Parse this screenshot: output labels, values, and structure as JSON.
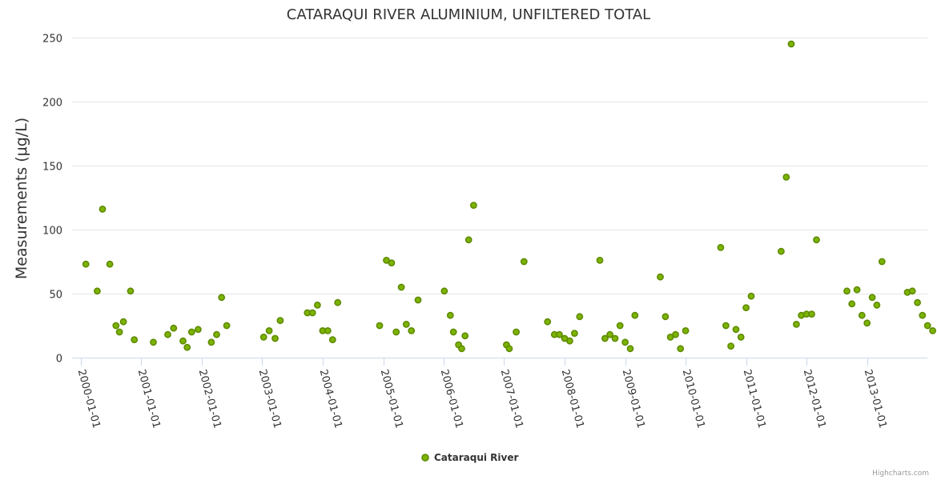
{
  "chart_data": {
    "type": "scatter",
    "title": "CATARAQUI RIVER ALUMINIUM, UNFILTERED TOTAL",
    "ylabel": "Measurements (μg/L)",
    "xlabel": "",
    "ylim": [
      0,
      250
    ],
    "yticks": [
      0,
      50,
      100,
      150,
      200,
      250
    ],
    "xticks": [
      "2000-01-01",
      "2001-01-01",
      "2002-01-01",
      "2003-01-01",
      "2004-01-01",
      "2005-01-01",
      "2006-01-01",
      "2007-01-01",
      "2008-01-01",
      "2009-01-01",
      "2010-01-01",
      "2011-01-01",
      "2012-01-01",
      "2013-01-01"
    ],
    "x_range": [
      "1999-11-10",
      "2013-12-31"
    ],
    "grid": "horizontal",
    "legend": "bottom-center",
    "series": [
      {
        "name": "Cataraqui River",
        "color": "#7cb400",
        "marker_fill": "#7cb400",
        "marker_stroke": "#5e8a00",
        "points": [
          [
            "2000-02-01",
            73
          ],
          [
            "2000-04-10",
            52
          ],
          [
            "2000-05-12",
            116
          ],
          [
            "2000-06-25",
            73
          ],
          [
            "2000-08-01",
            25
          ],
          [
            "2000-08-22",
            20
          ],
          [
            "2000-09-15",
            28
          ],
          [
            "2000-10-28",
            52
          ],
          [
            "2000-11-20",
            14
          ],
          [
            "2001-03-15",
            12
          ],
          [
            "2001-06-10",
            18
          ],
          [
            "2001-07-15",
            23
          ],
          [
            "2001-09-10",
            13
          ],
          [
            "2001-10-05",
            8
          ],
          [
            "2001-11-01",
            20
          ],
          [
            "2001-12-10",
            22
          ],
          [
            "2002-02-28",
            12
          ],
          [
            "2002-04-01",
            18
          ],
          [
            "2002-05-01",
            47
          ],
          [
            "2002-06-01",
            25
          ],
          [
            "2003-01-10",
            16
          ],
          [
            "2003-02-12",
            21
          ],
          [
            "2003-03-20",
            15
          ],
          [
            "2003-04-20",
            29
          ],
          [
            "2003-10-01",
            35
          ],
          [
            "2003-11-01",
            35
          ],
          [
            "2003-12-01",
            41
          ],
          [
            "2004-01-01",
            21
          ],
          [
            "2004-02-01",
            21
          ],
          [
            "2004-03-01",
            14
          ],
          [
            "2004-04-01",
            43
          ],
          [
            "2004-12-10",
            25
          ],
          [
            "2005-01-20",
            76
          ],
          [
            "2005-02-20",
            74
          ],
          [
            "2005-03-20",
            20
          ],
          [
            "2005-04-20",
            55
          ],
          [
            "2005-05-20",
            26
          ],
          [
            "2005-06-20",
            21
          ],
          [
            "2005-07-30",
            45
          ],
          [
            "2006-01-05",
            52
          ],
          [
            "2006-02-10",
            33
          ],
          [
            "2006-03-01",
            20
          ],
          [
            "2006-04-01",
            10
          ],
          [
            "2006-04-20",
            7
          ],
          [
            "2006-05-10",
            17
          ],
          [
            "2006-06-01",
            92
          ],
          [
            "2006-07-01",
            119
          ],
          [
            "2007-01-15",
            10
          ],
          [
            "2007-02-01",
            7
          ],
          [
            "2007-03-15",
            20
          ],
          [
            "2007-05-01",
            75
          ],
          [
            "2007-09-20",
            28
          ],
          [
            "2007-11-01",
            18
          ],
          [
            "2007-12-01",
            18
          ],
          [
            "2008-01-01",
            15
          ],
          [
            "2008-02-01",
            13
          ],
          [
            "2008-03-01",
            19
          ],
          [
            "2008-04-01",
            32
          ],
          [
            "2008-08-01",
            76
          ],
          [
            "2008-09-01",
            15
          ],
          [
            "2008-10-01",
            18
          ],
          [
            "2008-11-01",
            15
          ],
          [
            "2008-12-01",
            25
          ],
          [
            "2009-01-01",
            12
          ],
          [
            "2009-02-01",
            7
          ],
          [
            "2009-03-01",
            33
          ],
          [
            "2009-08-01",
            63
          ],
          [
            "2009-09-01",
            32
          ],
          [
            "2009-10-01",
            16
          ],
          [
            "2009-11-01",
            18
          ],
          [
            "2009-12-01",
            7
          ],
          [
            "2010-01-01",
            21
          ],
          [
            "2010-08-01",
            86
          ],
          [
            "2010-09-01",
            25
          ],
          [
            "2010-10-01",
            9
          ],
          [
            "2010-11-01",
            22
          ],
          [
            "2010-12-01",
            16
          ],
          [
            "2011-01-01",
            39
          ],
          [
            "2011-02-01",
            48
          ],
          [
            "2011-08-01",
            83
          ],
          [
            "2011-09-01",
            141
          ],
          [
            "2011-10-01",
            245
          ],
          [
            "2011-11-01",
            26
          ],
          [
            "2011-12-01",
            33
          ],
          [
            "2012-01-01",
            34
          ],
          [
            "2012-02-01",
            34
          ],
          [
            "2012-03-01",
            92
          ],
          [
            "2012-09-01",
            52
          ],
          [
            "2012-10-01",
            42
          ],
          [
            "2012-11-01",
            53
          ],
          [
            "2012-12-01",
            33
          ],
          [
            "2013-01-01",
            27
          ],
          [
            "2013-02-01",
            47
          ],
          [
            "2013-03-01",
            41
          ],
          [
            "2013-04-01",
            75
          ],
          [
            "2013-09-01",
            51
          ],
          [
            "2013-10-01",
            52
          ],
          [
            "2013-11-01",
            43
          ],
          [
            "2013-12-01",
            33
          ],
          [
            "2014-01-01",
            25
          ],
          [
            "2014-02-01",
            21
          ]
        ]
      }
    ]
  },
  "credits": "Highcharts.com"
}
